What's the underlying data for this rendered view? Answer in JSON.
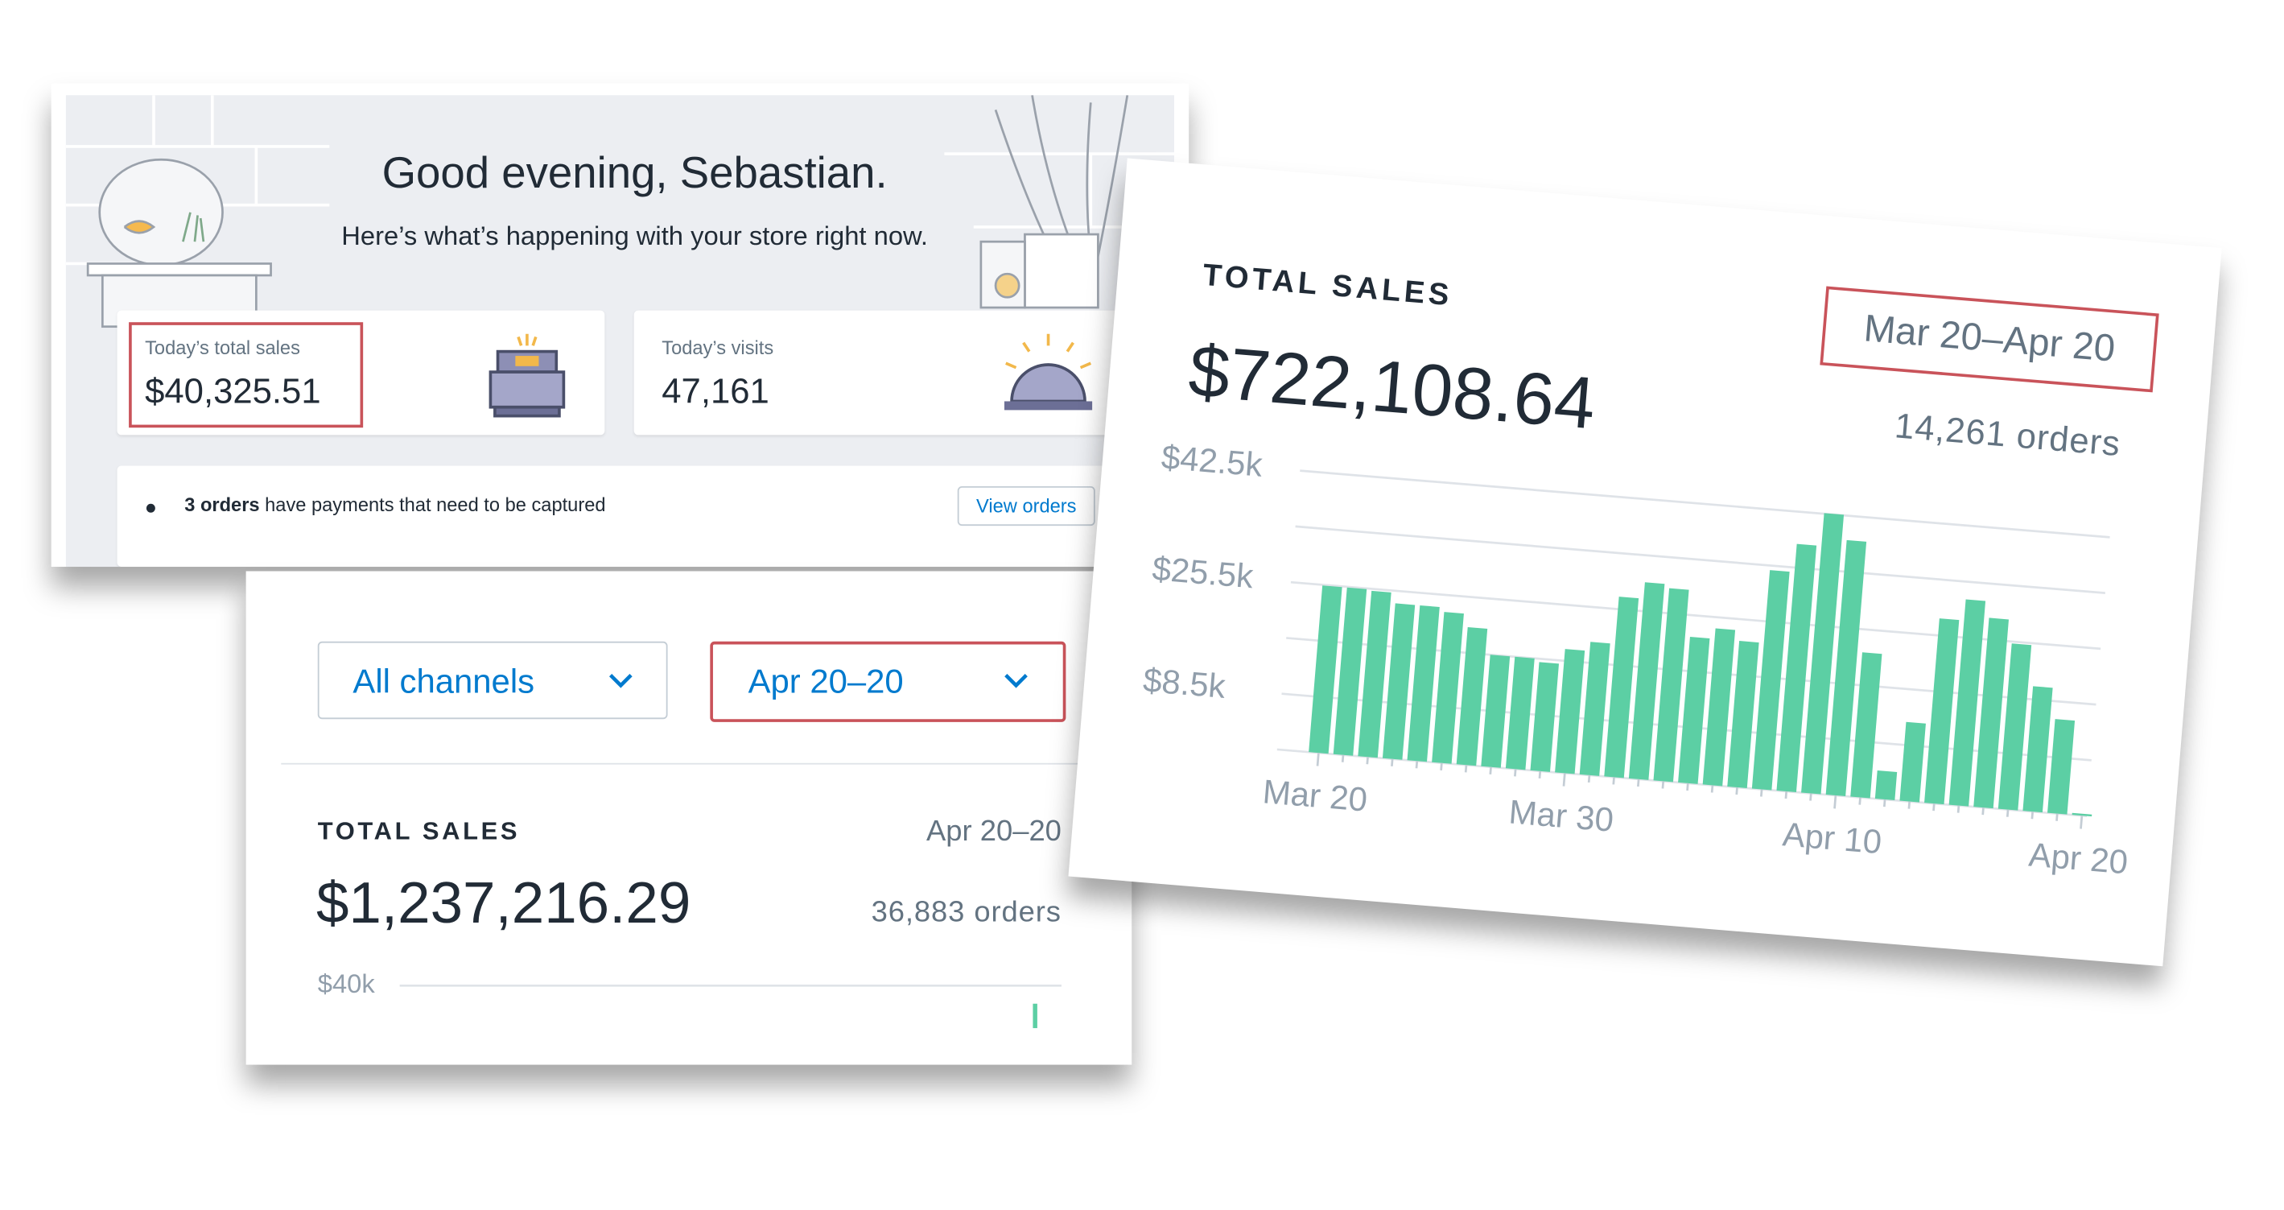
{
  "dashboard": {
    "greeting": "Good evening, Sebastian.",
    "subtitle": "Here’s what’s happening with your store right now.",
    "tiles": [
      {
        "label": "Today’s total sales",
        "value": "$40,325.51"
      },
      {
        "label": "Today’s visits",
        "value": "47,161"
      }
    ],
    "notice": {
      "bold": "3 orders",
      "text": " have payments that need to be captured",
      "button": "View orders"
    }
  },
  "filters": {
    "channel": "All channels",
    "date_range": "Apr 20–20"
  },
  "chart_data": [
    {
      "type": "bar",
      "title": "TOTAL SALES",
      "date_range": "Mar 20–Apr 20",
      "total": "$722,108.64",
      "orders": "14,261 orders",
      "categories": [
        "Mar 20",
        null,
        null,
        null,
        null,
        null,
        null,
        null,
        null,
        null,
        "Mar 30",
        null,
        null,
        null,
        null,
        null,
        null,
        null,
        null,
        null,
        null,
        "Apr 10",
        null,
        null,
        null,
        null,
        null,
        null,
        null,
        null,
        null,
        "Apr 20"
      ],
      "series": [
        {
          "name": null,
          "color": "#5ccfa4",
          "values": [
            25400,
            25400,
            25200,
            23600,
            23600,
            22900,
            20900,
            17000,
            17000,
            16500,
            18800,
            20200,
            27400,
            29900,
            29300,
            22200,
            23800,
            22200,
            33300,
            37600,
            42600,
            38800,
            22000,
            4300,
            12000,
            28100,
            31300,
            28800,
            25200,
            19000,
            14300,
            300
          ]
        }
      ],
      "ylim": [
        0,
        42500
      ],
      "yticks": [
        {
          "value": 0,
          "label": null
        },
        {
          "value": 8500,
          "label": "$8.5k"
        },
        {
          "value": 17000,
          "label": null
        },
        {
          "value": 25500,
          "label": "$25.5k"
        },
        {
          "value": 34000,
          "label": null
        },
        {
          "value": 42500,
          "label": "$42.5k"
        }
      ],
      "grid": true
    },
    {
      "type": "bar",
      "title": "TOTAL SALES",
      "date_range": "Apr 20–20",
      "total": "$1,237,216.29",
      "orders": "36,883 orders",
      "categories": [
        null
      ],
      "series": [
        {
          "name": null,
          "color": "#5ccfa4",
          "values": [
            23000
          ]
        }
      ],
      "ylim": [
        0,
        40000
      ],
      "yticks": [
        {
          "value": 40000,
          "label": "$40k"
        }
      ],
      "grid": true
    }
  ]
}
